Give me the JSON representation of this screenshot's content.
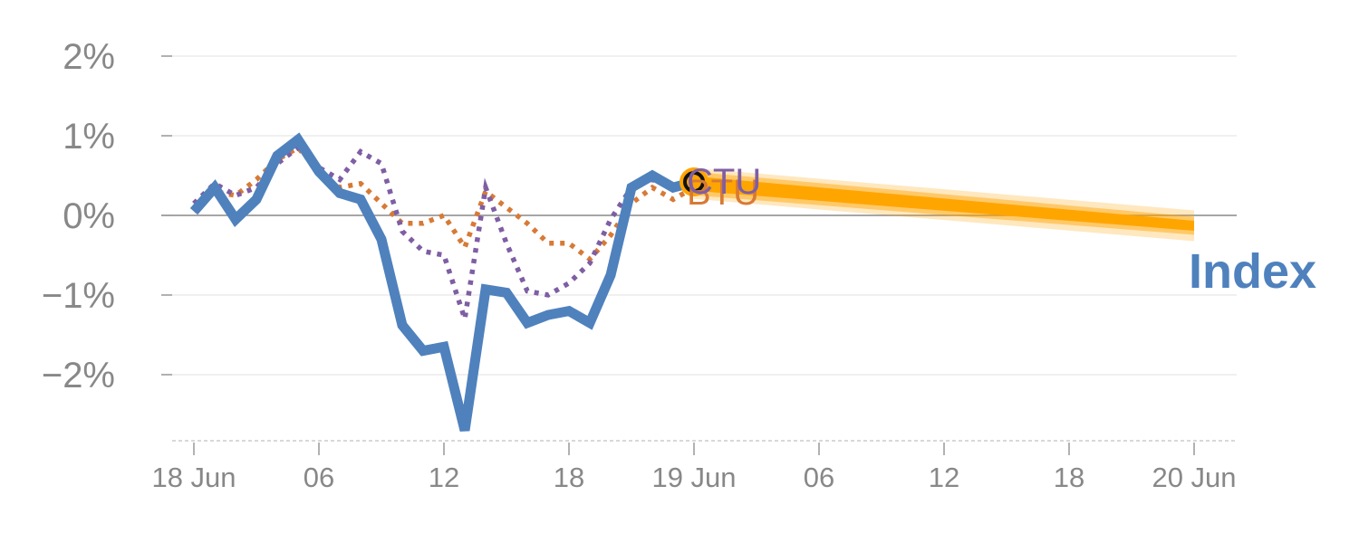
{
  "chart_data": {
    "type": "line",
    "y_unit": "%",
    "ylim": [
      -2.8,
      2.2
    ],
    "x_range_hours": [
      0,
      48
    ],
    "y_ticks": [
      {
        "value": 2,
        "label": "2%"
      },
      {
        "value": 1,
        "label": "1%"
      },
      {
        "value": 0,
        "label": "0%"
      },
      {
        "value": -1,
        "label": "−1%"
      },
      {
        "value": -2,
        "label": "−2%"
      }
    ],
    "x_ticks": [
      {
        "hour": 0,
        "label": "18 Jun"
      },
      {
        "hour": 6,
        "label": "06"
      },
      {
        "hour": 12,
        "label": "12"
      },
      {
        "hour": 18,
        "label": "18"
      },
      {
        "hour": 24,
        "label": "19 Jun"
      },
      {
        "hour": 30,
        "label": "06"
      },
      {
        "hour": 36,
        "label": "12"
      },
      {
        "hour": 42,
        "label": "18"
      },
      {
        "hour": 48,
        "label": "20 Jun"
      }
    ],
    "series": [
      {
        "name": "Index",
        "color": "#4f81bd",
        "style": "solid",
        "label": "Index",
        "x": [
          0,
          1,
          2,
          3,
          4,
          5,
          6,
          7,
          8,
          9,
          10,
          11,
          12,
          13,
          14,
          15,
          16,
          17,
          18,
          19,
          20,
          21,
          22,
          23,
          24
        ],
        "values": [
          0.05,
          0.35,
          -0.05,
          0.2,
          0.75,
          0.95,
          0.55,
          0.28,
          0.2,
          -0.3,
          -1.38,
          -1.7,
          -1.65,
          -2.7,
          -0.93,
          -0.97,
          -1.35,
          -1.25,
          -1.2,
          -1.35,
          -0.75,
          0.35,
          0.5,
          0.35,
          0.42
        ]
      },
      {
        "name": "BTU",
        "color": "#d77a36",
        "style": "dotted",
        "label": "BTU",
        "x": [
          0,
          1,
          2,
          3,
          4,
          5,
          6,
          7,
          8,
          9,
          10,
          11,
          12,
          13,
          14,
          15,
          16,
          17,
          18,
          19,
          20,
          21,
          22,
          23,
          24
        ],
        "values": [
          0.05,
          0.3,
          0.25,
          0.45,
          0.7,
          0.85,
          0.55,
          0.35,
          0.4,
          0.15,
          -0.1,
          -0.1,
          0.0,
          -0.4,
          0.3,
          0.1,
          -0.1,
          -0.35,
          -0.35,
          -0.55,
          -0.25,
          0.15,
          0.35,
          0.2,
          0.35
        ]
      },
      {
        "name": "CTU",
        "color": "#7e5ea4",
        "style": "dotted",
        "label": "CTU",
        "x": [
          0,
          1,
          2,
          3,
          4,
          5,
          6,
          7,
          8,
          9,
          10,
          11,
          12,
          13,
          14,
          15,
          16,
          17,
          18,
          19,
          20,
          21,
          22,
          23,
          24
        ],
        "values": [
          0.15,
          0.4,
          0.25,
          0.35,
          0.65,
          0.85,
          0.6,
          0.45,
          0.8,
          0.65,
          -0.2,
          -0.45,
          -0.5,
          -1.3,
          0.35,
          -0.35,
          -0.95,
          -1.0,
          -0.85,
          -0.6,
          -0.05,
          0.35,
          0.45,
          0.35,
          0.42
        ]
      }
    ],
    "forecast": {
      "color": "#ffa500",
      "x": [
        24,
        48
      ],
      "values": [
        0.4,
        -0.13
      ]
    },
    "current_marker": {
      "hour": 24,
      "value": 0.42,
      "color": "#ffa500"
    }
  }
}
